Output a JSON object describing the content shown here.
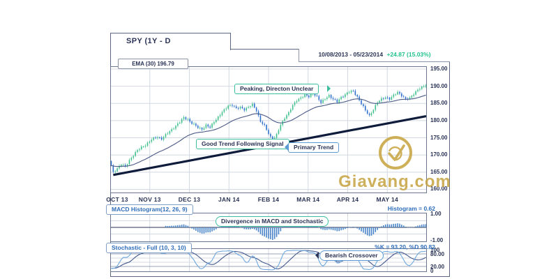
{
  "header": {
    "symbol_tab": "SPY (1Y - D",
    "date_range": "10/08/2013 - 05/23/2014",
    "change": "+24.87 (15.03%)",
    "ema_label": "EMA (30) 196.79"
  },
  "annotations": {
    "peaking": "Peaking, Directon Unclear",
    "good_trend": "Good Trend Following Signal",
    "primary_trend": "Primary Trend",
    "divergence": "Divergence in MACD and Stochastic",
    "bearish": "Bearish Crossover"
  },
  "macd_panel": {
    "label": "MACD Histogram(12, 26, 9)",
    "value_label": "Histogram = 0.62",
    "ticks": [
      {
        "label": "1.00",
        "value": 1
      },
      {
        "label": "-1.00",
        "value": -1
      }
    ]
  },
  "stoch_panel": {
    "label": "Stochastic - Full (10, 3, 10)",
    "value_label": "%K = 93.20, %D 90.82",
    "ticks": [
      {
        "label": "100",
        "value": 100
      },
      {
        "label": "80.00",
        "value": 80
      },
      {
        "label": "20.00",
        "value": 20
      },
      {
        "label": "0",
        "value": 0
      }
    ]
  },
  "watermark": {
    "text": "Giavang.com"
  },
  "colors": {
    "navy": "#2a3356",
    "accent_blue": "#2f6db8",
    "green": "#1fc28e",
    "up_candle": "#3fc08c",
    "down_candle": "#2e71cc",
    "ema_line": "#4a5a85",
    "trend_line": "#0e1b3a",
    "grid": "#d4d8e2",
    "panel_border": "#6b7690",
    "hist_bar": "#4a86c8",
    "stoch_k": "#6fa8dc",
    "stoch_d": "#44598c",
    "teal_note": "#3cbf9f",
    "blue_note": "#5b9bd5",
    "gold": "#c7a546"
  },
  "chart_data": {
    "type": "candlestick",
    "title": "SPY (1Y - D",
    "date_range": "10/08/2013 - 05/23/2014",
    "change_abs": 24.87,
    "change_pct": 15.03,
    "x_labels": [
      "OCT 13",
      "NOV 13",
      "DEC 13",
      "JAN 14",
      "FEB 14",
      "MAR 14",
      "APR 14",
      "MAY 14"
    ],
    "price_axis": {
      "ticks": [
        {
          "label": "195.00",
          "value": 195
        },
        {
          "label": "190.00",
          "value": 190
        },
        {
          "label": "185.00",
          "value": 185
        },
        {
          "label": "180.00",
          "value": 180
        },
        {
          "label": "175.00",
          "value": 175
        },
        {
          "label": "170.00",
          "value": 170
        },
        {
          "label": "165.00",
          "value": 165
        },
        {
          "label": "160.00",
          "value": 160
        }
      ],
      "range": [
        158.5,
        196.5
      ]
    },
    "trading_days": 157,
    "first_open": 168.2,
    "close_anchors": [
      [
        0,
        166.8
      ],
      [
        1,
        164.9
      ],
      [
        3,
        166.2
      ],
      [
        5,
        167.3
      ],
      [
        7,
        166.5
      ],
      [
        9,
        168.5
      ],
      [
        11,
        170.0
      ],
      [
        13,
        171.3
      ],
      [
        15,
        172.2
      ],
      [
        17,
        173.0
      ],
      [
        20,
        174.4
      ],
      [
        23,
        175.3
      ],
      [
        25,
        174.7
      ],
      [
        28,
        176.3
      ],
      [
        31,
        178.0
      ],
      [
        34,
        179.5
      ],
      [
        36,
        180.9
      ],
      [
        38,
        180.4
      ],
      [
        40,
        179.2
      ],
      [
        43,
        178.0
      ],
      [
        45,
        177.6
      ],
      [
        47,
        178.6
      ],
      [
        49,
        177.9
      ],
      [
        51,
        179.8
      ],
      [
        54,
        181.7
      ],
      [
        56,
        183.0
      ],
      [
        58,
        184.4
      ],
      [
        60,
        184.6
      ],
      [
        62,
        183.4
      ],
      [
        64,
        183.9
      ],
      [
        66,
        183.3
      ],
      [
        68,
        183.9
      ],
      [
        70,
        184.6
      ],
      [
        72,
        183.0
      ],
      [
        74,
        179.8
      ],
      [
        76,
        178.4
      ],
      [
        78,
        176.2
      ],
      [
        80,
        174.3
      ],
      [
        82,
        175.9
      ],
      [
        84,
        178.6
      ],
      [
        86,
        180.9
      ],
      [
        88,
        182.4
      ],
      [
        90,
        184.3
      ],
      [
        92,
        185.9
      ],
      [
        94,
        186.8
      ],
      [
        96,
        187.4
      ],
      [
        98,
        186.9
      ],
      [
        100,
        188.1
      ],
      [
        102,
        187.0
      ],
      [
        104,
        185.1
      ],
      [
        106,
        186.4
      ],
      [
        108,
        187.4
      ],
      [
        110,
        186.2
      ],
      [
        112,
        185.4
      ],
      [
        114,
        186.9
      ],
      [
        116,
        187.6
      ],
      [
        118,
        188.3
      ],
      [
        120,
        188.6
      ],
      [
        122,
        187.0
      ],
      [
        124,
        184.9
      ],
      [
        126,
        182.9
      ],
      [
        128,
        181.5
      ],
      [
        130,
        183.3
      ],
      [
        132,
        185.2
      ],
      [
        134,
        186.3
      ],
      [
        136,
        186.9
      ],
      [
        138,
        186.2
      ],
      [
        140,
        187.3
      ],
      [
        142,
        188.4
      ],
      [
        144,
        187.3
      ],
      [
        146,
        186.1
      ],
      [
        148,
        186.6
      ],
      [
        150,
        187.9
      ],
      [
        152,
        188.9
      ],
      [
        154,
        189.6
      ],
      [
        156,
        190.5
      ]
    ],
    "overlays": {
      "ema_period": 30,
      "trend_line": {
        "from_day": 1,
        "from_price": 164.2,
        "to_day": 157,
        "to_price": 181.3
      }
    },
    "indicators": [
      {
        "name": "MACD Histogram",
        "params": [
          12,
          26,
          9
        ],
        "last_value": 0.62,
        "ylim": [
          -1.05,
          1.05
        ]
      },
      {
        "name": "Stochastic Full",
        "params": [
          10,
          3,
          10
        ],
        "last_k": 93.2,
        "last_d": 90.82,
        "ylim": [
          0,
          100
        ],
        "bands": [
          80,
          20
        ]
      }
    ]
  }
}
